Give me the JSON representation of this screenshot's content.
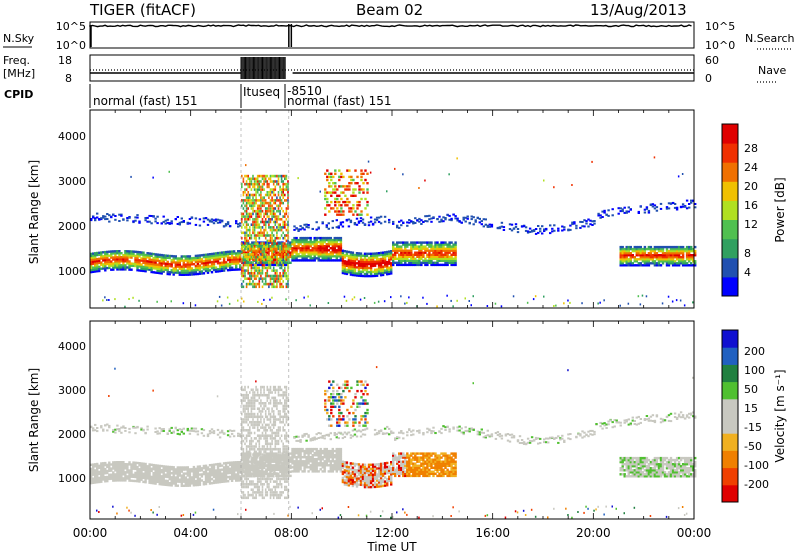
{
  "header": {
    "title": "TIGER (fitACF)",
    "beam": "Beam 02",
    "date": "13/Aug/2013"
  },
  "nsky_panel": {
    "left_label": "N.Sky",
    "left_ticks": [
      "10^5",
      "10^0"
    ],
    "right_label": "N.Search",
    "right_ticks": [
      "10^5",
      "10^0"
    ]
  },
  "freq_panel": {
    "left_label_1": "Freq.",
    "left_label_2": "[MHz]",
    "left_ticks": [
      "18",
      "8"
    ],
    "right_label": "Nave",
    "right_ticks": [
      "60",
      "0"
    ]
  },
  "cpid": {
    "label": "CPID",
    "segments": [
      {
        "text": "normal (fast) 151"
      },
      {
        "text": "Ituseq"
      },
      {
        "text": "-8510"
      },
      {
        "text": "normal (fast) 151"
      }
    ]
  },
  "colors": {
    "power": [
      "#0000ff",
      "#2050b0",
      "#30a060",
      "#50c050",
      "#b0e020",
      "#f0c000",
      "#f07000",
      "#f03000",
      "#e00000"
    ],
    "velocity": [
      "#e00000",
      "#f04000",
      "#f08000",
      "#f0b020",
      "#c8c8c0",
      "#c8c8c0",
      "#50c030",
      "#208040",
      "#2060c0",
      "#1010d0"
    ]
  },
  "chart_data": [
    {
      "type": "heatmap",
      "name": "power",
      "xlabel": "",
      "ylabel": "Slant Range [km]",
      "yticks": [
        "1000",
        "2000",
        "3000",
        "4000"
      ],
      "ylim": [
        200,
        4600
      ],
      "xlim": [
        "00:00",
        "24:00"
      ],
      "colorbar_label": "Power [dB]",
      "colorbar_ticks": [
        "4",
        "8",
        "12",
        "16",
        "20",
        "24",
        "28"
      ]
    },
    {
      "type": "heatmap",
      "name": "velocity",
      "xlabel": "Time UT",
      "ylabel": "Slant Range [km]",
      "yticks": [
        "1000",
        "2000",
        "3000",
        "4000"
      ],
      "ylim": [
        200,
        4600
      ],
      "xlim": [
        "00:00",
        "24:00"
      ],
      "xticks": [
        "00:00",
        "04:00",
        "08:00",
        "12:00",
        "16:00",
        "20:00",
        "00:00"
      ],
      "colorbar_label": "Velocity [m s⁻¹]",
      "colorbar_ticks": [
        "200",
        "100",
        "50",
        "15",
        "-15",
        "-50",
        "-100",
        "-200"
      ]
    }
  ]
}
